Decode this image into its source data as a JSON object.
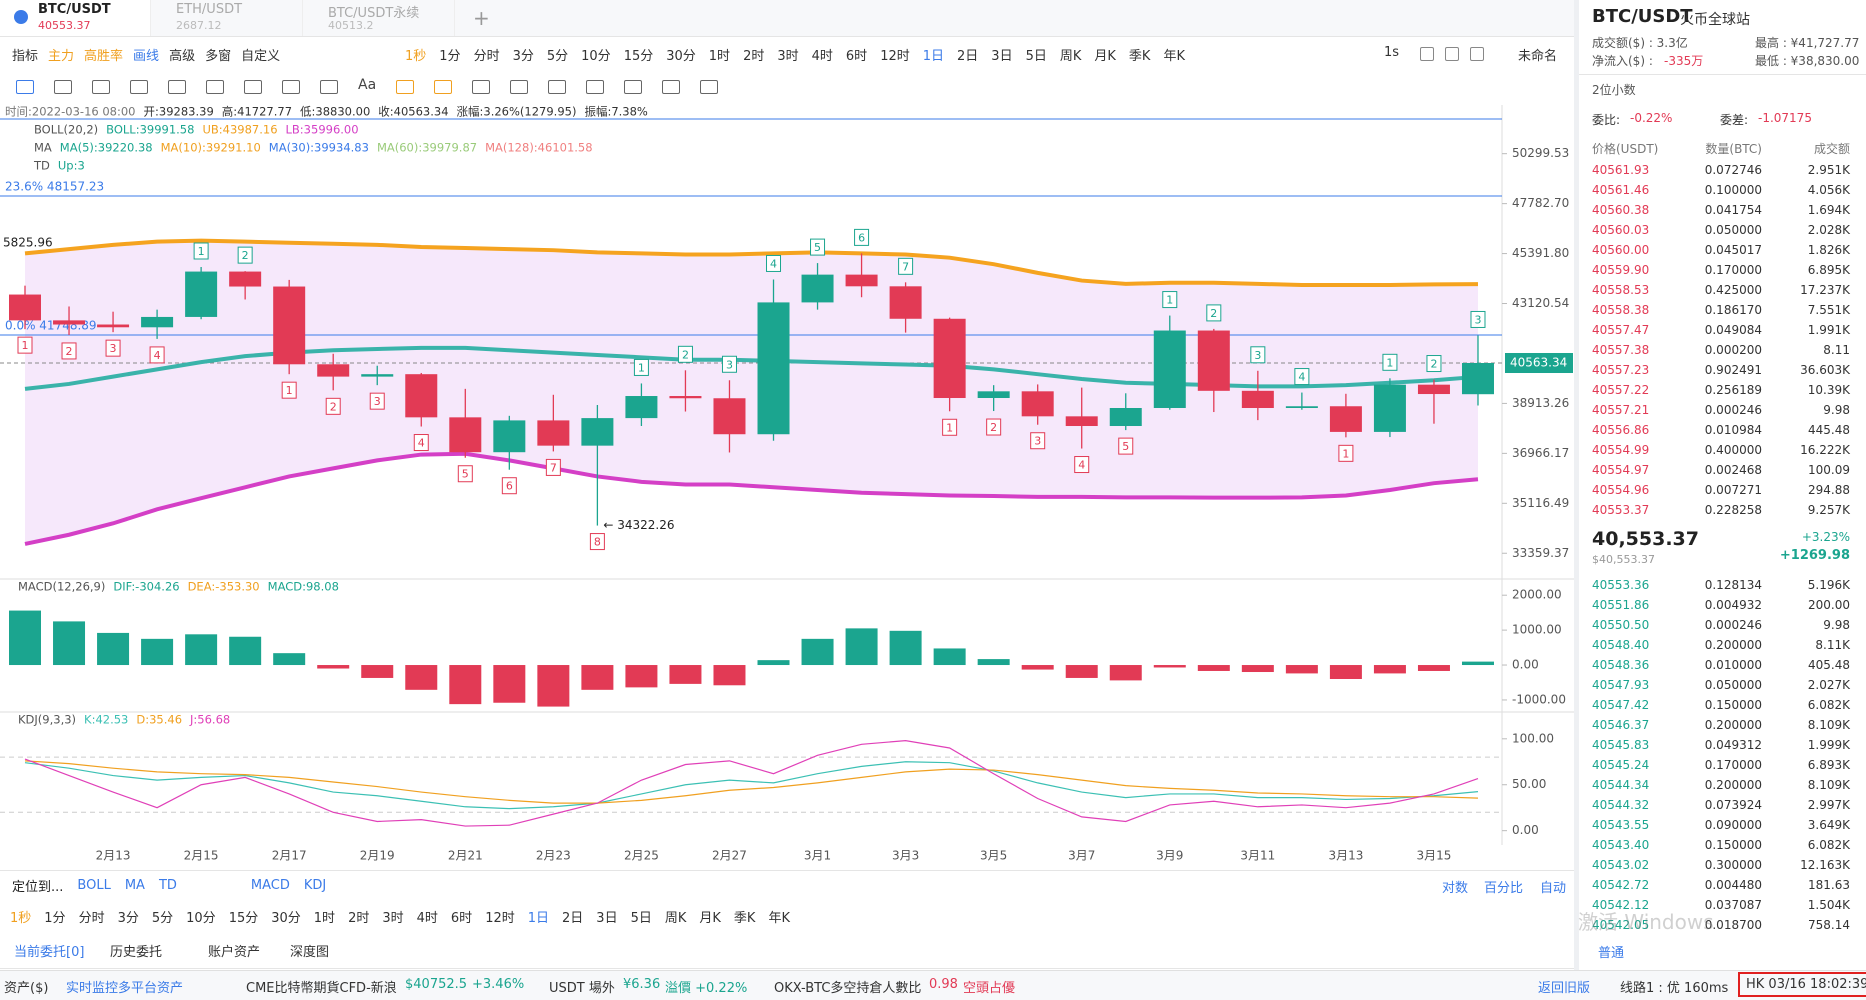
{
  "tabs": [
    {
      "symbol": "BTC/USDT",
      "price": "40553.37"
    },
    {
      "symbol": "ETH/USDT",
      "price": "2687.12"
    },
    {
      "symbol": "BTC/USDT永续",
      "price": "40513.2"
    }
  ],
  "toolbar": {
    "tools": [
      "指标",
      "主力",
      "高胜率",
      "画线",
      "高级",
      "多窗",
      "自定义"
    ],
    "intervals": [
      "1秒",
      "1分",
      "分时",
      "3分",
      "5分",
      "10分",
      "15分",
      "30分",
      "1时",
      "2时",
      "3时",
      "4时",
      "6时",
      "12时",
      "1日",
      "2日",
      "3日",
      "5日",
      "周K",
      "月K",
      "季K",
      "年K"
    ],
    "right": [
      "1s",
      "未命名"
    ],
    "text_tool": "Aa"
  },
  "chart": {
    "type": "candlestick",
    "header": [
      "时间:2022-03-16 08:00",
      "开:39283.39",
      "高:41727.77",
      "低:38830.00",
      "收:40563.34",
      "涨幅:3.26%(1279.95)",
      "振幅:7.38%"
    ],
    "boll_legend": [
      "BOLL(20,2)",
      "BOLL:39991.58",
      "UB:43987.16",
      "LB:35996.00"
    ],
    "ma_legend": [
      "MA",
      "MA(5):39220.38",
      "MA(10):39291.10",
      "MA(30):39934.83",
      "MA(60):39979.87",
      "MA(128):46101.58"
    ],
    "td_legend": [
      "TD",
      "Up:3"
    ],
    "categories": [
      null,
      null,
      "2月13",
      null,
      "2月15",
      null,
      "2月17",
      null,
      "2月19",
      null,
      "2月21",
      null,
      "2月23",
      null,
      "2月25",
      null,
      "2月27",
      null,
      "3月1",
      null,
      "3月3",
      null,
      "3月5",
      null,
      "3月7",
      null,
      "3月9",
      null,
      "3月11",
      null,
      "3月13",
      null,
      "3月15",
      null
    ],
    "candles": {
      "open": [
        43520,
        42380,
        42200,
        42080,
        42530,
        44560,
        43880,
        40510,
        40000,
        40100,
        38360,
        37010,
        38240,
        37260,
        38330,
        39210,
        39120,
        37700,
        43170,
        44420,
        43890,
        42450,
        39130,
        39400,
        38400,
        38020,
        38730,
        41940,
        39420,
        38730,
        38800,
        37790,
        39670,
        39283.39
      ],
      "high": [
        43920,
        42990,
        42760,
        42850,
        44770,
        44580,
        44180,
        40950,
        40450,
        40150,
        39500,
        38420,
        39260,
        38850,
        39720,
        40260,
        39850,
        44200,
        44950,
        45400,
        44070,
        42500,
        39650,
        39680,
        39550,
        39320,
        42590,
        42010,
        40240,
        39350,
        39300,
        39930,
        39880,
        41727.77
      ],
      "low": [
        42000,
        41750,
        41870,
        41580,
        42430,
        43300,
        40100,
        39440,
        39650,
        38000,
        36800,
        36350,
        37040,
        34322.26,
        38020,
        38590,
        37000,
        37450,
        42850,
        43400,
        41850,
        38600,
        38610,
        38070,
        37150,
        37860,
        38660,
        38570,
        38250,
        38660,
        37580,
        37590,
        38110,
        38830
      ],
      "close": [
        42380,
        42200,
        42080,
        42530,
        44560,
        43880,
        40510,
        40000,
        40100,
        38360,
        37010,
        38240,
        37260,
        38330,
        39210,
        39120,
        37700,
        43170,
        44420,
        43890,
        42450,
        39130,
        39400,
        38400,
        38020,
        38730,
        41940,
        39420,
        38730,
        38800,
        37790,
        39670,
        39290,
        40563.34
      ]
    },
    "up_color": "#1ba58f",
    "down_color": "#e23a55",
    "boll": {
      "upper": [
        45400,
        45600,
        45800,
        45950,
        46000,
        45950,
        45900,
        45850,
        45800,
        45700,
        45650,
        45600,
        45550,
        45450,
        45400,
        45350,
        45350,
        45400,
        45450,
        45400,
        45350,
        45200,
        44900,
        44500,
        44150,
        44000,
        44050,
        44050,
        44000,
        43950,
        43950,
        43950,
        43980,
        43987.16
      ],
      "mid": [
        39500,
        39700,
        40000,
        40300,
        40600,
        40850,
        41000,
        41100,
        41150,
        41200,
        41200,
        41100,
        41000,
        40900,
        40800,
        40700,
        40700,
        40650,
        40600,
        40550,
        40500,
        40450,
        40300,
        40100,
        39900,
        39750,
        39700,
        39650,
        39600,
        39600,
        39650,
        39750,
        39850,
        39991.58
      ],
      "lower": [
        33680,
        34000,
        34400,
        34900,
        35300,
        35700,
        36100,
        36400,
        36700,
        36920,
        36950,
        36700,
        36400,
        36100,
        35900,
        35800,
        35800,
        35700,
        35600,
        35500,
        35450,
        35400,
        35380,
        35350,
        35350,
        35330,
        35330,
        35320,
        35320,
        35330,
        35400,
        35600,
        35850,
        35996
      ],
      "colors": {
        "upper": "#f5a31f",
        "mid": "#3ab3aa",
        "lower": "#d43fc6",
        "band": "#f6e8fb"
      }
    },
    "log": true,
    "ylim": [
      32555,
      52880
    ],
    "yticks": [
      50299.53,
      {
        "value": 47782.7,
        "label": "47782.70"
      },
      {
        "value": 45391.8,
        "label": "45391.80"
      },
      43120.54,
      38913.26,
      36966.17,
      35116.49,
      33359.37
    ],
    "last_price": 40563.34,
    "fib": [
      {
        "value": 48157.23,
        "label": "23.6% 48157.23"
      },
      {
        "value": 41748.89,
        "label": "0.0% 41748.89"
      }
    ],
    "left_label": "5825.96",
    "low_note": "← 34322.26",
    "td_above": [
      null,
      null,
      null,
      null,
      "1",
      "2",
      null,
      null,
      null,
      null,
      null,
      null,
      null,
      null,
      "1",
      "2",
      "3",
      "4",
      "5",
      "6",
      "7",
      null,
      null,
      null,
      null,
      null,
      "1",
      "2",
      "3",
      "4",
      null,
      "1",
      "2",
      "3"
    ],
    "td_below": [
      "1",
      "2",
      "3",
      "4",
      null,
      null,
      "1",
      "2",
      "3",
      "4",
      "5",
      "6",
      "7",
      "8",
      null,
      null,
      null,
      null,
      null,
      null,
      null,
      "1",
      "2",
      "3",
      "4",
      "5",
      null,
      null,
      null,
      null,
      "1",
      null,
      null,
      null
    ],
    "macd": {
      "legend": [
        "MACD(12,26,9)",
        "DIF:-304.26",
        "DEA:-353.30",
        "MACD:98.08"
      ],
      "values": [
        1560,
        1250,
        920,
        750,
        880,
        810,
        340,
        -100,
        -370,
        -710,
        -1120,
        -1080,
        -1190,
        -710,
        -640,
        -540,
        -580,
        140,
        750,
        1050,
        980,
        475,
        170,
        -130,
        -370,
        -440,
        -70,
        -170,
        -200,
        -240,
        -400,
        -240,
        -170,
        98.08
      ],
      "ylim": [
        -1288,
        2407
      ],
      "yticks": [
        {
          "value": 2000,
          "label": "2000.00"
        },
        {
          "value": 1000,
          "label": "1000.00"
        },
        {
          "value": 0,
          "label": "0.00"
        },
        {
          "value": -1000,
          "label": "-1000.00"
        }
      ]
    },
    "kdj": {
      "legend": [
        "KDJ(9,3,3)",
        "K:42.53",
        "D:35.46",
        "J:56.68"
      ],
      "series": [
        {
          "name": "K",
          "color": "#3cc0b4",
          "values": [
            74,
            68,
            60,
            55,
            58,
            60,
            52,
            42,
            38,
            32,
            26,
            24,
            26,
            30,
            40,
            50,
            55,
            52,
            62,
            70,
            75,
            74,
            65,
            52,
            42,
            36,
            40,
            40,
            36,
            36,
            34,
            35,
            38,
            42.53
          ]
        },
        {
          "name": "D",
          "color": "#f0a020",
          "values": [
            76,
            73,
            68,
            64,
            62,
            61,
            58,
            53,
            48,
            42,
            37,
            33,
            30,
            30,
            33,
            38,
            44,
            47,
            52,
            58,
            64,
            67,
            66,
            61,
            55,
            49,
            46,
            44,
            41,
            40,
            38,
            37,
            37,
            35.46
          ]
        },
        {
          "name": "J",
          "color": "#e040b8",
          "values": [
            78,
            60,
            42,
            25,
            50,
            58,
            40,
            20,
            10,
            12,
            5,
            6,
            18,
            30,
            55,
            72,
            76,
            62,
            82,
            94,
            98,
            90,
            62,
            35,
            15,
            10,
            28,
            32,
            26,
            28,
            25,
            30,
            40,
            56.68
          ]
        }
      ],
      "ylim": [
        -15.6,
        127
      ],
      "yticks": [
        {
          "value": 100,
          "label": "100.00"
        },
        {
          "value": 50,
          "label": "50.00"
        },
        {
          "value": 0,
          "label": "0.00"
        }
      ],
      "dashed_levels": [
        80,
        20
      ]
    }
  },
  "bottom_toolbar": {
    "left": [
      "定位到...",
      "BOLL",
      "MA",
      "TD",
      "MACD",
      "KDJ"
    ],
    "right": [
      "对数",
      "百分比",
      "自动"
    ]
  },
  "order_tabs": [
    "当前委托[0]",
    "历史委托",
    "账户资产",
    "深度图"
  ],
  "status": {
    "assets": "资产($)",
    "monitor": "实时监控多平台资产",
    "cme": "CME比特幣期貨CFD-新浪",
    "cme_price": "$40752.5",
    "cme_change": "+3.46%",
    "otc": "USDT 場外",
    "otc_price": "¥6.36",
    "premium": "溢價 +0.22%",
    "okx": "OKX-BTC多空持倉人數比",
    "okx_ratio": "0.98",
    "okx_note": "空頭占優",
    "old": "返回旧版",
    "line": "线路1 : 优 160ms",
    "clock": "HK 03/16 18:02:39"
  },
  "side": {
    "symbol": "BTC/USDT",
    "exchange": "火币全球站",
    "volume": "成交额($) : 3.3亿",
    "inflow_label": "净流入($) :",
    "inflow": "-335万",
    "high": "最高 : ¥41,727.77",
    "low": "最低 : ¥38,830.00",
    "decimals": "2位小数",
    "ratio_label": "委比:",
    "ratio": "-0.22%",
    "diff_label": "委差:",
    "diff": "-1.07175",
    "columns": [
      "价格(USDT)",
      "数量(BTC)",
      "成交额"
    ],
    "asks": [
      [
        "40561.93",
        "0.072746",
        "2.951K"
      ],
      [
        "40561.46",
        "0.100000",
        "4.056K"
      ],
      [
        "40560.38",
        "0.041754",
        "1.694K"
      ],
      [
        "40560.03",
        "0.050000",
        "2.028K"
      ],
      [
        "40560.00",
        "0.045017",
        "1.826K"
      ],
      [
        "40559.90",
        "0.170000",
        "6.895K"
      ],
      [
        "40558.53",
        "0.425000",
        "17.237K"
      ],
      [
        "40558.38",
        "0.186170",
        "7.551K"
      ],
      [
        "40557.47",
        "0.049084",
        "1.991K"
      ],
      [
        "40557.38",
        "0.000200",
        "8.11"
      ],
      [
        "40557.23",
        "0.902491",
        "36.603K"
      ],
      [
        "40557.22",
        "0.256189",
        "10.39K"
      ],
      [
        "40557.21",
        "0.000246",
        "9.98"
      ],
      [
        "40556.86",
        "0.010984",
        "445.48"
      ],
      [
        "40554.99",
        "0.400000",
        "16.222K"
      ],
      [
        "40554.97",
        "0.002468",
        "100.09"
      ],
      [
        "40554.96",
        "0.007271",
        "294.88"
      ],
      [
        "40553.37",
        "0.228258",
        "9.257K"
      ]
    ],
    "last": "40,553.37",
    "last_usd": "$40,553.37",
    "change_pct": "+3.23%",
    "change": "+1269.98",
    "bids": [
      [
        "40553.36",
        "0.128134",
        "5.196K"
      ],
      [
        "40551.86",
        "0.004932",
        "200.00"
      ],
      [
        "40550.50",
        "0.000246",
        "9.98"
      ],
      [
        "40548.40",
        "0.200000",
        "8.11K"
      ],
      [
        "40548.36",
        "0.010000",
        "405.48"
      ],
      [
        "40547.93",
        "0.050000",
        "2.027K"
      ],
      [
        "40547.42",
        "0.150000",
        "6.082K"
      ],
      [
        "40546.37",
        "0.200000",
        "8.109K"
      ],
      [
        "40545.83",
        "0.049312",
        "1.999K"
      ],
      [
        "40545.24",
        "0.170000",
        "6.893K"
      ],
      [
        "40544.34",
        "0.200000",
        "8.109K"
      ],
      [
        "40544.32",
        "0.073924",
        "2.997K"
      ],
      [
        "40543.55",
        "0.090000",
        "3.649K"
      ],
      [
        "40543.40",
        "0.150000",
        "6.082K"
      ],
      [
        "40543.02",
        "0.300000",
        "12.163K"
      ],
      [
        "40542.72",
        "0.004480",
        "181.63"
      ],
      [
        "40542.12",
        "0.037087",
        "1.504K"
      ],
      [
        "40542.05",
        "0.018700",
        "758.14"
      ]
    ],
    "mode": "普通",
    "watermark": "激活 Windows"
  }
}
